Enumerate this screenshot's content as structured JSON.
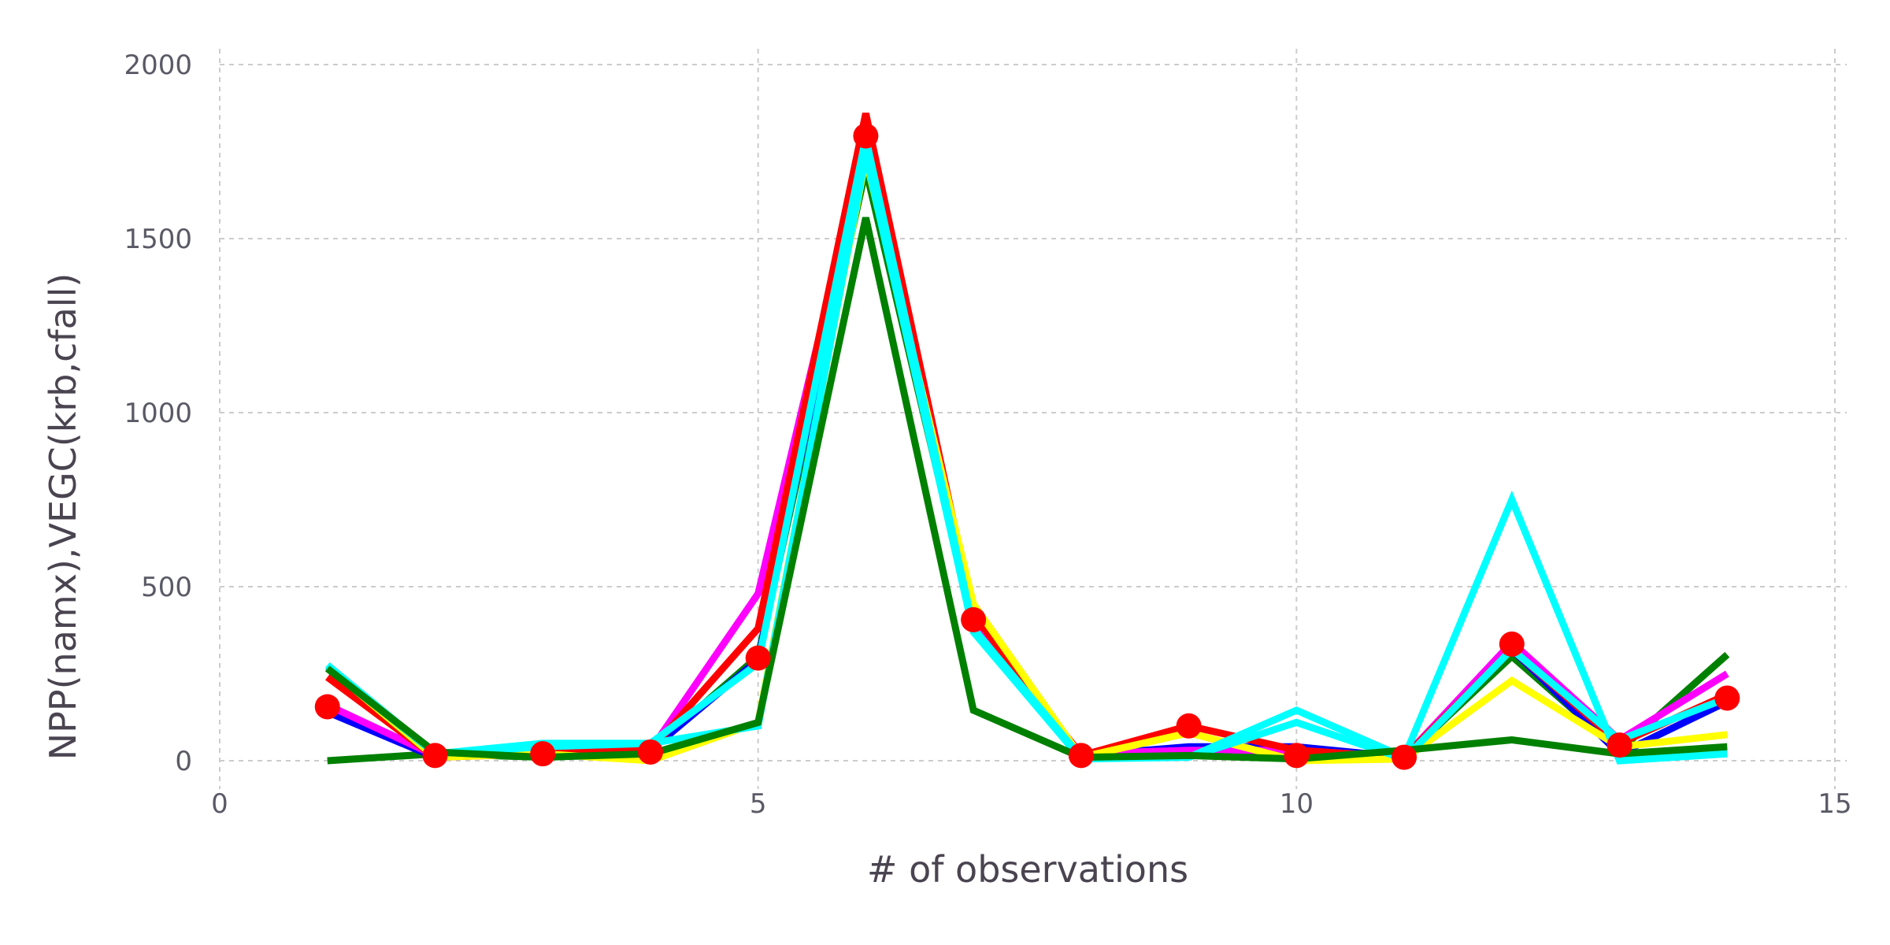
{
  "chart_data": {
    "type": "line",
    "title": "",
    "xlabel": "# of observations",
    "ylabel": "NPP(namx),VEGC(krb,cfall)",
    "xlim": [
      0,
      15.2
    ],
    "ylim": [
      -60,
      2060
    ],
    "x_ticks": [
      0,
      5,
      10,
      15
    ],
    "y_ticks": [
      0,
      500,
      1000,
      1500,
      2000
    ],
    "grid": true,
    "x": [
      1,
      2,
      3,
      4,
      5,
      6,
      7,
      8,
      9,
      10,
      11,
      12,
      13,
      14
    ],
    "series": [
      {
        "color": "#008000",
        "values": [
          0,
          20,
          10,
          30,
          300,
          1700,
          390,
          10,
          20,
          10,
          10,
          300,
          30,
          305
        ]
      },
      {
        "color": "#0000ff",
        "values": [
          140,
          10,
          30,
          30,
          290,
          1760,
          380,
          15,
          40,
          40,
          10,
          320,
          20,
          170
        ]
      },
      {
        "color": "#ff00ff",
        "values": [
          160,
          15,
          30,
          30,
          480,
          1780,
          390,
          20,
          30,
          30,
          10,
          340,
          60,
          250
        ]
      },
      {
        "color": "#ff0000",
        "values": [
          240,
          10,
          20,
          30,
          380,
          1860,
          420,
          15,
          100,
          30,
          10,
          320,
          50,
          190
        ]
      },
      {
        "color": "#ffff00",
        "values": [
          270,
          10,
          20,
          0,
          110,
          1730,
          450,
          10,
          80,
          0,
          5,
          230,
          40,
          75
        ]
      },
      {
        "color": "#00ffff",
        "values": [
          270,
          20,
          40,
          50,
          280,
          1790,
          380,
          10,
          10,
          110,
          5,
          320,
          60,
          180
        ]
      },
      {
        "color": "#00ffff",
        "values": [
          275,
          20,
          50,
          50,
          100,
          1740,
          370,
          5,
          10,
          145,
          10,
          750,
          0,
          20
        ]
      },
      {
        "color": "#008000",
        "values": [
          265,
          25,
          10,
          20,
          110,
          1560,
          145,
          10,
          15,
          5,
          30,
          60,
          20,
          40
        ]
      }
    ],
    "markers": {
      "color": "#ff0000",
      "values": [
        155,
        15,
        20,
        25,
        295,
        1795,
        405,
        15,
        100,
        15,
        10,
        335,
        45,
        180
      ]
    }
  }
}
